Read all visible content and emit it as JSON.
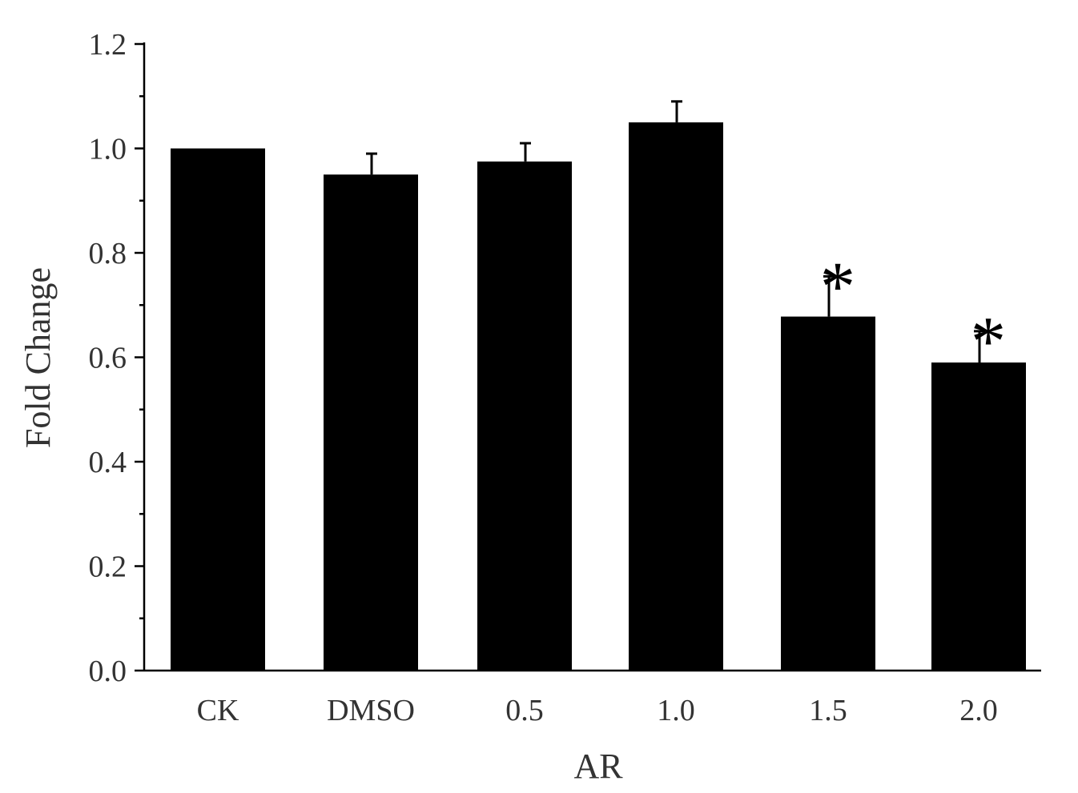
{
  "chart_data": {
    "type": "bar",
    "title": "",
    "xlabel": "AR",
    "ylabel": "Fold Change",
    "ylim": [
      0,
      1.2
    ],
    "yticks": [
      "0.0",
      "0.2",
      "0.4",
      "0.6",
      "0.8",
      "1.0",
      "1.2"
    ],
    "categories": [
      "CK",
      "DMSO",
      "0.5",
      "1.0",
      "1.5",
      "2.0"
    ],
    "values": [
      1.0,
      0.95,
      0.975,
      1.05,
      0.678,
      0.59
    ],
    "errors": [
      0.0,
      0.04,
      0.035,
      0.04,
      0.077,
      0.06
    ],
    "annotations": [
      "",
      "",
      "",
      "",
      "*",
      "*"
    ],
    "grid": false,
    "colors": {
      "bar": "#000000",
      "axis": "#000000",
      "text": "#333333"
    }
  }
}
